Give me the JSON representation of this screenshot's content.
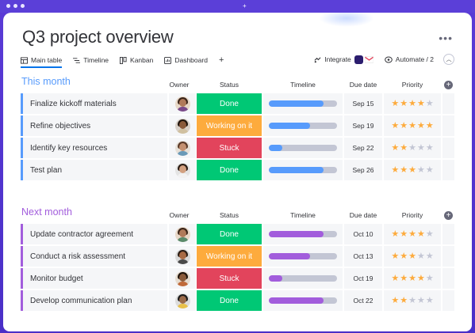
{
  "page": {
    "title": "Q3 project overview"
  },
  "tabs": [
    {
      "label": "Main table",
      "icon": "table-icon"
    },
    {
      "label": "Timeline",
      "icon": "timeline-icon"
    },
    {
      "label": "Kanban",
      "icon": "kanban-icon"
    },
    {
      "label": "Dashboard",
      "icon": "dashboard-icon"
    }
  ],
  "toolbar": {
    "integrate_label": "Integrate",
    "automate_label": "Automate / 2"
  },
  "columns": {
    "owner": "Owner",
    "status": "Status",
    "timeline": "Timeline",
    "due": "Due date",
    "priority": "Priority"
  },
  "colors": {
    "working": "#fdab3d",
    "done": "#00c875",
    "stuck": "#e2445c",
    "this_month": "#579bfc",
    "next_month": "#a25ddc",
    "this_month_bar": "#579bfc",
    "next_month_bar": "#a25ddc"
  },
  "groups": [
    {
      "title": "This month",
      "color": "#579bfc",
      "rows": [
        {
          "name": "Finalize kickoff materials",
          "status": "Done",
          "status_color": "#00c875",
          "timeline_progress": 0.8,
          "due": "Sep 15",
          "priority": 4
        },
        {
          "name": "Refine objectives",
          "status": "Working on it",
          "status_color": "#fdab3d",
          "timeline_progress": 0.6,
          "due": "Sep 19",
          "priority": 5
        },
        {
          "name": "Identify key resources",
          "status": "Stuck",
          "status_color": "#e2445c",
          "timeline_progress": 0.2,
          "due": "Sep 22",
          "priority": 2
        },
        {
          "name": "Test plan",
          "status": "Done",
          "status_color": "#00c875",
          "timeline_progress": 0.8,
          "due": "Sep 26",
          "priority": 3
        }
      ]
    },
    {
      "title": "Next month",
      "color": "#a25ddc",
      "rows": [
        {
          "name": "Update contractor agreement",
          "status": "Done",
          "status_color": "#00c875",
          "timeline_progress": 0.8,
          "due": "Oct 10",
          "priority": 4
        },
        {
          "name": "Conduct a risk assessment",
          "status": "Working on it",
          "status_color": "#fdab3d",
          "timeline_progress": 0.6,
          "due": "Oct 13",
          "priority": 3
        },
        {
          "name": "Monitor budget",
          "status": "Stuck",
          "status_color": "#e2445c",
          "timeline_progress": 0.2,
          "due": "Oct 19",
          "priority": 4
        },
        {
          "name": "Develop communication plan",
          "status": "Done",
          "status_color": "#00c875",
          "timeline_progress": 0.8,
          "due": "Oct 22",
          "priority": 2
        }
      ]
    }
  ]
}
